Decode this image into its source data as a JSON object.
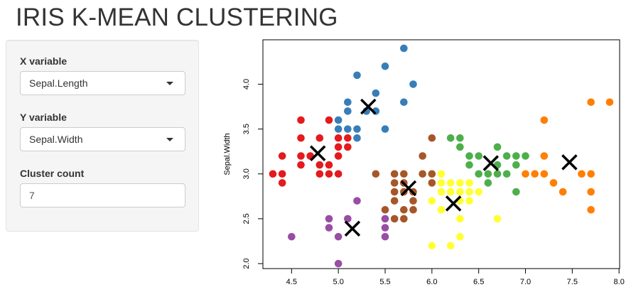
{
  "app": {
    "title": "IRIS K-MEAN CLUSTERING"
  },
  "sidebar": {
    "x_variable": {
      "label": "X variable",
      "selected": "Sepal.Length"
    },
    "y_variable": {
      "label": "Y variable",
      "selected": "Sepal.Width"
    },
    "cluster_count": {
      "label": "Cluster count",
      "value": "7"
    }
  },
  "chart_data": {
    "type": "scatter",
    "xlabel": "",
    "ylabel": "Sepal.Width",
    "xlim": [
      4.3,
      7.9
    ],
    "ylim": [
      2.0,
      4.4
    ],
    "xticks": [
      "4.5",
      "5.0",
      "5.5",
      "6.0",
      "6.5",
      "7.0",
      "7.5",
      "8.0"
    ],
    "yticks": [
      "2.0",
      "2.5",
      "3.0",
      "3.5",
      "4.0"
    ],
    "grid": false,
    "center_marker": "X",
    "series": [
      {
        "color": "#E41A1C",
        "points": [
          [
            4.3,
            3.0
          ],
          [
            4.4,
            2.9
          ],
          [
            4.4,
            3.0
          ],
          [
            4.4,
            3.2
          ],
          [
            4.6,
            3.1
          ],
          [
            4.6,
            3.2
          ],
          [
            4.6,
            3.4
          ],
          [
            4.6,
            3.6
          ],
          [
            4.7,
            3.2
          ],
          [
            4.8,
            3.0
          ],
          [
            4.8,
            3.1
          ],
          [
            4.8,
            3.4
          ],
          [
            4.9,
            3.0
          ],
          [
            4.9,
            3.1
          ],
          [
            4.9,
            3.6
          ],
          [
            5.0,
            3.0
          ],
          [
            5.0,
            3.2
          ],
          [
            5.0,
            3.3
          ],
          [
            5.0,
            3.4
          ],
          [
            5.1,
            3.3
          ],
          [
            5.1,
            3.4
          ]
        ],
        "center": [
          4.78,
          3.23
        ]
      },
      {
        "color": "#377EB8",
        "points": [
          [
            5.0,
            3.5
          ],
          [
            5.0,
            3.6
          ],
          [
            5.1,
            3.5
          ],
          [
            5.1,
            3.7
          ],
          [
            5.1,
            3.8
          ],
          [
            5.2,
            3.4
          ],
          [
            5.2,
            3.5
          ],
          [
            5.2,
            4.1
          ],
          [
            5.3,
            3.7
          ],
          [
            5.4,
            3.7
          ],
          [
            5.4,
            3.9
          ],
          [
            5.5,
            3.5
          ],
          [
            5.5,
            4.2
          ],
          [
            5.7,
            3.8
          ],
          [
            5.7,
            4.4
          ],
          [
            5.8,
            4.0
          ]
        ],
        "center": [
          5.32,
          3.75
        ]
      },
      {
        "color": "#4DAF4A",
        "points": [
          [
            6.2,
            3.4
          ],
          [
            6.3,
            3.3
          ],
          [
            6.3,
            3.4
          ],
          [
            6.4,
            3.1
          ],
          [
            6.4,
            3.2
          ],
          [
            6.5,
            3.0
          ],
          [
            6.5,
            3.2
          ],
          [
            6.6,
            3.0
          ],
          [
            6.7,
            3.0
          ],
          [
            6.7,
            3.1
          ],
          [
            6.7,
            3.3
          ],
          [
            6.8,
            3.0
          ],
          [
            6.8,
            3.2
          ],
          [
            6.9,
            3.1
          ],
          [
            6.9,
            3.2
          ],
          [
            7.0,
            3.2
          ],
          [
            6.6,
            2.9
          ],
          [
            6.9,
            2.8
          ]
        ],
        "center": [
          6.63,
          3.12
        ]
      },
      {
        "color": "#984EA3",
        "points": [
          [
            4.5,
            2.3
          ],
          [
            4.9,
            2.4
          ],
          [
            4.9,
            2.5
          ],
          [
            5.0,
            2.0
          ],
          [
            5.0,
            2.3
          ],
          [
            5.1,
            2.5
          ],
          [
            5.2,
            2.7
          ],
          [
            5.5,
            2.3
          ],
          [
            5.5,
            2.4
          ],
          [
            5.5,
            2.5
          ]
        ],
        "center": [
          5.15,
          2.39
        ]
      },
      {
        "color": "#FF7F00",
        "points": [
          [
            7.0,
            3.0
          ],
          [
            7.1,
            3.0
          ],
          [
            7.2,
            3.0
          ],
          [
            7.2,
            3.2
          ],
          [
            7.2,
            3.6
          ],
          [
            7.3,
            2.9
          ],
          [
            7.4,
            2.8
          ],
          [
            7.6,
            3.0
          ],
          [
            7.7,
            2.6
          ],
          [
            7.7,
            2.8
          ],
          [
            7.7,
            3.0
          ],
          [
            7.7,
            3.8
          ],
          [
            7.9,
            3.8
          ]
        ],
        "center": [
          7.47,
          3.13
        ]
      },
      {
        "color": "#FFFF33",
        "points": [
          [
            6.0,
            2.2
          ],
          [
            6.0,
            2.7
          ],
          [
            6.0,
            2.9
          ],
          [
            6.0,
            3.0
          ],
          [
            6.1,
            2.6
          ],
          [
            6.1,
            2.8
          ],
          [
            6.1,
            2.9
          ],
          [
            6.1,
            3.0
          ],
          [
            6.2,
            2.2
          ],
          [
            6.2,
            2.8
          ],
          [
            6.2,
            2.9
          ],
          [
            6.3,
            2.3
          ],
          [
            6.3,
            2.5
          ],
          [
            6.3,
            2.7
          ],
          [
            6.3,
            2.8
          ],
          [
            6.3,
            2.9
          ],
          [
            6.4,
            2.7
          ],
          [
            6.4,
            2.8
          ],
          [
            6.4,
            2.9
          ],
          [
            6.5,
            2.8
          ],
          [
            6.7,
            2.5
          ]
        ],
        "center": [
          6.23,
          2.67
        ]
      },
      {
        "color": "#A65628",
        "points": [
          [
            5.4,
            3.0
          ],
          [
            5.5,
            2.6
          ],
          [
            5.6,
            2.5
          ],
          [
            5.6,
            2.7
          ],
          [
            5.6,
            2.8
          ],
          [
            5.6,
            2.9
          ],
          [
            5.6,
            3.0
          ],
          [
            5.7,
            2.5
          ],
          [
            5.7,
            2.6
          ],
          [
            5.7,
            2.8
          ],
          [
            5.7,
            2.9
          ],
          [
            5.7,
            3.0
          ],
          [
            5.8,
            2.6
          ],
          [
            5.8,
            2.7
          ],
          [
            5.8,
            2.8
          ],
          [
            5.9,
            3.0
          ],
          [
            5.9,
            3.2
          ],
          [
            6.0,
            2.9
          ],
          [
            6.0,
            3.0
          ],
          [
            6.0,
            3.4
          ]
        ],
        "center": [
          5.75,
          2.84
        ]
      }
    ]
  }
}
